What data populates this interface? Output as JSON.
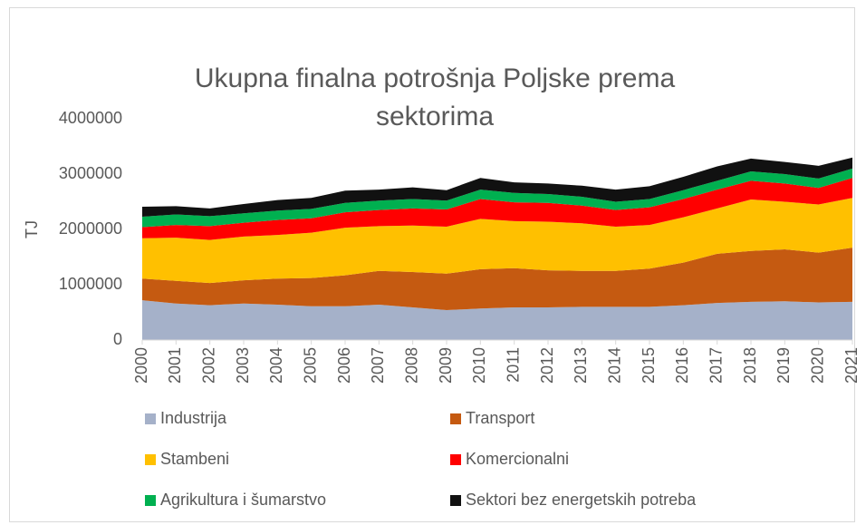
{
  "chart_data": {
    "type": "stacked_area",
    "title": "Ukupna finalna potrošnja Poljske prema sektorima",
    "y_label": "TJ",
    "categories": [
      "2000",
      "2001",
      "2002",
      "2003",
      "2004",
      "2005",
      "2006",
      "2007",
      "2008",
      "2009",
      "2010",
      "2011",
      "2012",
      "2013",
      "2014",
      "2015",
      "2016",
      "2017",
      "2018",
      "2019",
      "2020",
      "2021"
    ],
    "series": [
      {
        "name": "Industrija",
        "color": "#a5b1c9",
        "values": [
          720000,
          660000,
          630000,
          660000,
          640000,
          610000,
          610000,
          640000,
          590000,
          540000,
          570000,
          590000,
          590000,
          600000,
          600000,
          600000,
          630000,
          670000,
          690000,
          700000,
          680000,
          690000
        ]
      },
      {
        "name": "Transport",
        "color": "#c55a11",
        "values": [
          390000,
          410000,
          400000,
          420000,
          470000,
          510000,
          560000,
          610000,
          640000,
          660000,
          710000,
          710000,
          670000,
          650000,
          650000,
          690000,
          770000,
          890000,
          920000,
          940000,
          900000,
          980000
        ]
      },
      {
        "name": "Stambeni",
        "color": "#ffc000",
        "values": [
          730000,
          780000,
          780000,
          790000,
          790000,
          820000,
          860000,
          810000,
          840000,
          850000,
          910000,
          850000,
          880000,
          860000,
          800000,
          790000,
          820000,
          820000,
          930000,
          860000,
          870000,
          900000
        ]
      },
      {
        "name": "Komercionalni",
        "color": "#ff0000",
        "values": [
          200000,
          230000,
          250000,
          250000,
          270000,
          260000,
          280000,
          290000,
          310000,
          310000,
          360000,
          340000,
          340000,
          320000,
          300000,
          320000,
          330000,
          340000,
          340000,
          330000,
          300000,
          360000
        ]
      },
      {
        "name": "Agrikultura i šumarstvo",
        "color": "#00b050",
        "values": [
          190000,
          190000,
          180000,
          170000,
          170000,
          170000,
          170000,
          170000,
          170000,
          160000,
          170000,
          170000,
          160000,
          160000,
          150000,
          150000,
          160000,
          160000,
          170000,
          170000,
          170000,
          170000
        ]
      },
      {
        "name": "Sektori bez energetskih potreba",
        "color": "#111111",
        "values": [
          180000,
          150000,
          140000,
          170000,
          190000,
          200000,
          220000,
          200000,
          210000,
          190000,
          210000,
          190000,
          190000,
          200000,
          220000,
          230000,
          240000,
          260000,
          230000,
          220000,
          230000,
          200000
        ]
      }
    ],
    "ylim": [
      0,
      4000000
    ],
    "yticks": [
      0,
      1000000,
      2000000,
      3000000,
      4000000
    ],
    "grid": false,
    "legend": "bottom"
  }
}
